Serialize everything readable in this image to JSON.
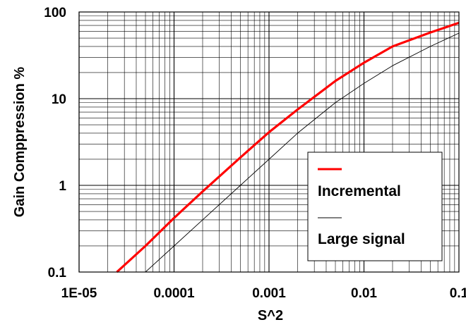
{
  "chart_data": {
    "type": "line",
    "title": "",
    "xlabel": "S^2",
    "ylabel": "Gain Comppression  %",
    "x_scale": "log",
    "y_scale": "log",
    "xlim": [
      1e-05,
      0.1
    ],
    "ylim": [
      0.1,
      100
    ],
    "x_ticks": [
      "1E-05",
      "0.0001",
      "0.001",
      "0.01",
      "0.1"
    ],
    "y_ticks": [
      "0.1",
      "1",
      "10",
      "100"
    ],
    "grid": true,
    "legend_position": "bottom-right",
    "series": [
      {
        "name": "Incremental",
        "color": "#ff0000",
        "x": [
          2.5e-05,
          5e-05,
          0.0001,
          0.0002,
          0.0005,
          0.001,
          0.002,
          0.005,
          0.01,
          0.02,
          0.05,
          0.1
        ],
        "y": [
          0.1,
          0.2,
          0.42,
          0.85,
          2.1,
          4.1,
          7.5,
          16,
          26,
          40,
          58,
          75
        ]
      },
      {
        "name": "Large signal",
        "color": "#000000",
        "x": [
          5e-05,
          0.0001,
          0.0002,
          0.0005,
          0.001,
          0.002,
          0.005,
          0.01,
          0.02,
          0.05,
          0.1
        ],
        "y": [
          0.1,
          0.2,
          0.4,
          1.0,
          2.0,
          4.0,
          9.0,
          15,
          24,
          40,
          57
        ]
      }
    ]
  }
}
